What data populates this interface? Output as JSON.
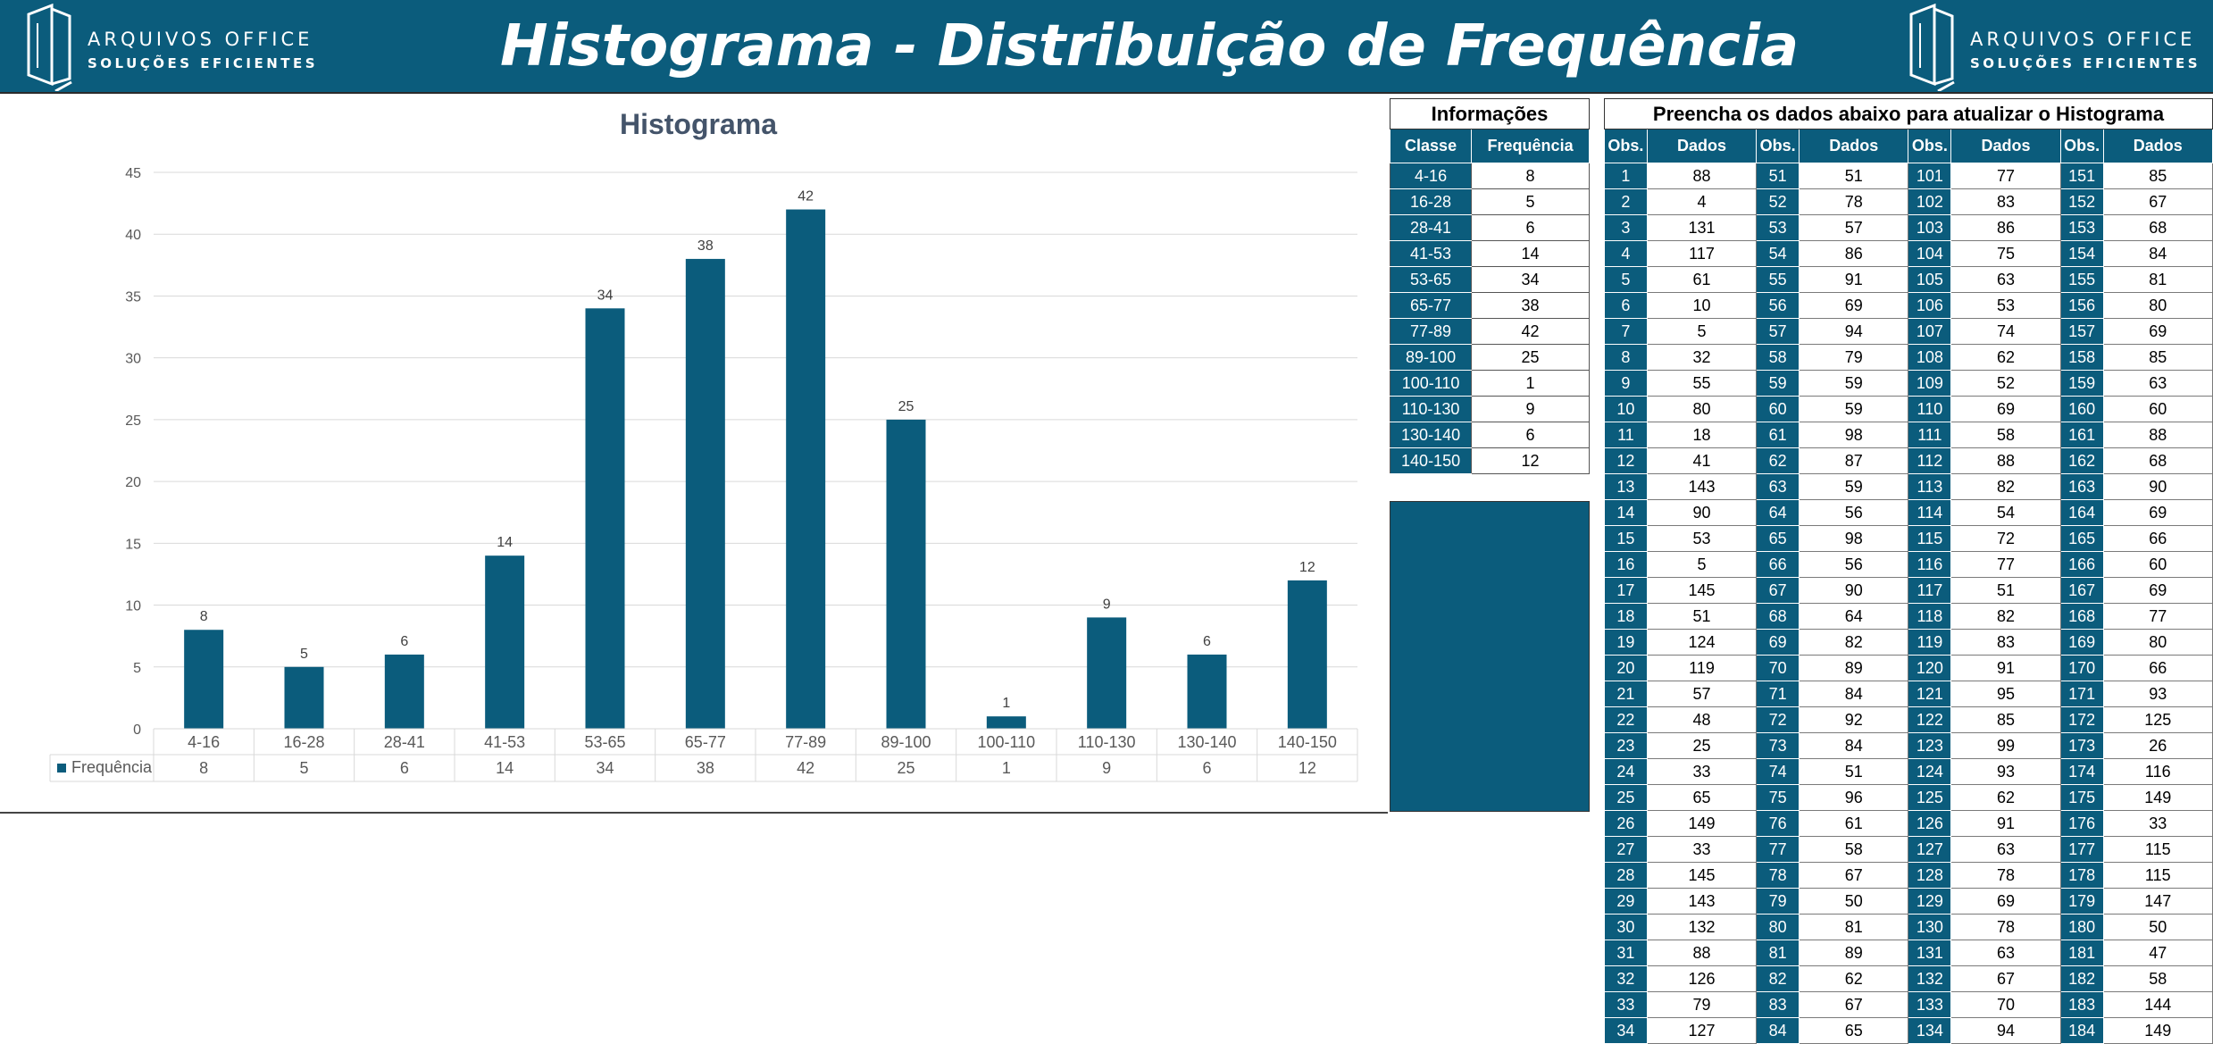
{
  "header": {
    "title": "Histograma - Distribuição de Frequência",
    "logo_line1": "ARQUIVOS OFFICE",
    "logo_line2": "SOLUÇÕES EFICIENTES",
    "brand_color": "#0b5c7c"
  },
  "chart_data": {
    "type": "bar",
    "title": "Histograma",
    "categories": [
      "4-16",
      "16-28",
      "28-41",
      "41-53",
      "53-65",
      "65-77",
      "77-89",
      "89-100",
      "100-110",
      "110-130",
      "130-140",
      "140-150"
    ],
    "series": [
      {
        "name": "Frequência",
        "values": [
          8,
          5,
          6,
          14,
          34,
          38,
          42,
          25,
          1,
          9,
          6,
          12
        ]
      }
    ],
    "ylim": [
      0,
      45
    ],
    "yticks": [
      0,
      5,
      10,
      15,
      20,
      25,
      30,
      35,
      40,
      45
    ],
    "grid": true,
    "data_table": true,
    "bar_color": "#0b5c7c"
  },
  "info": {
    "title": "Informações",
    "col_classe": "Classe",
    "col_frequencia": "Frequência",
    "rows": [
      {
        "classe": "4-16",
        "freq": "8"
      },
      {
        "classe": "16-28",
        "freq": "5"
      },
      {
        "classe": "28-41",
        "freq": "6"
      },
      {
        "classe": "41-53",
        "freq": "14"
      },
      {
        "classe": "53-65",
        "freq": "34"
      },
      {
        "classe": "65-77",
        "freq": "38"
      },
      {
        "classe": "77-89",
        "freq": "42"
      },
      {
        "classe": "89-100",
        "freq": "25"
      },
      {
        "classe": "100-110",
        "freq": "1"
      },
      {
        "classe": "110-130",
        "freq": "9"
      },
      {
        "classe": "130-140",
        "freq": "6"
      },
      {
        "classe": "140-150",
        "freq": "12"
      }
    ]
  },
  "observations": {
    "title": "Preencha os dados abaixo para atualizar o Histograma",
    "col_obs": "Obs.",
    "col_dados": "Dados",
    "rows": [
      [
        "1",
        "88",
        "51",
        "51",
        "101",
        "77",
        "151",
        "85"
      ],
      [
        "2",
        "4",
        "52",
        "78",
        "102",
        "83",
        "152",
        "67"
      ],
      [
        "3",
        "131",
        "53",
        "57",
        "103",
        "86",
        "153",
        "68"
      ],
      [
        "4",
        "117",
        "54",
        "86",
        "104",
        "75",
        "154",
        "84"
      ],
      [
        "5",
        "61",
        "55",
        "91",
        "105",
        "63",
        "155",
        "81"
      ],
      [
        "6",
        "10",
        "56",
        "69",
        "106",
        "53",
        "156",
        "80"
      ],
      [
        "7",
        "5",
        "57",
        "94",
        "107",
        "74",
        "157",
        "69"
      ],
      [
        "8",
        "32",
        "58",
        "79",
        "108",
        "62",
        "158",
        "85"
      ],
      [
        "9",
        "55",
        "59",
        "59",
        "109",
        "52",
        "159",
        "63"
      ],
      [
        "10",
        "80",
        "60",
        "59",
        "110",
        "69",
        "160",
        "60"
      ],
      [
        "11",
        "18",
        "61",
        "98",
        "111",
        "58",
        "161",
        "88"
      ],
      [
        "12",
        "41",
        "62",
        "87",
        "112",
        "88",
        "162",
        "68"
      ],
      [
        "13",
        "143",
        "63",
        "59",
        "113",
        "82",
        "163",
        "90"
      ],
      [
        "14",
        "90",
        "64",
        "56",
        "114",
        "54",
        "164",
        "69"
      ],
      [
        "15",
        "53",
        "65",
        "98",
        "115",
        "72",
        "165",
        "66"
      ],
      [
        "16",
        "5",
        "66",
        "56",
        "116",
        "77",
        "166",
        "60"
      ],
      [
        "17",
        "145",
        "67",
        "90",
        "117",
        "51",
        "167",
        "69"
      ],
      [
        "18",
        "51",
        "68",
        "64",
        "118",
        "82",
        "168",
        "77"
      ],
      [
        "19",
        "124",
        "69",
        "82",
        "119",
        "83",
        "169",
        "80"
      ],
      [
        "20",
        "119",
        "70",
        "89",
        "120",
        "91",
        "170",
        "66"
      ],
      [
        "21",
        "57",
        "71",
        "84",
        "121",
        "95",
        "171",
        "93"
      ],
      [
        "22",
        "48",
        "72",
        "92",
        "122",
        "85",
        "172",
        "125"
      ],
      [
        "23",
        "25",
        "73",
        "84",
        "123",
        "99",
        "173",
        "26"
      ],
      [
        "24",
        "33",
        "74",
        "51",
        "124",
        "93",
        "174",
        "116"
      ],
      [
        "25",
        "65",
        "75",
        "96",
        "125",
        "62",
        "175",
        "149"
      ],
      [
        "26",
        "149",
        "76",
        "61",
        "126",
        "91",
        "176",
        "33"
      ],
      [
        "27",
        "33",
        "77",
        "58",
        "127",
        "63",
        "177",
        "115"
      ],
      [
        "28",
        "145",
        "78",
        "67",
        "128",
        "78",
        "178",
        "115"
      ],
      [
        "29",
        "143",
        "79",
        "50",
        "129",
        "69",
        "179",
        "147"
      ],
      [
        "30",
        "132",
        "80",
        "81",
        "130",
        "78",
        "180",
        "50"
      ],
      [
        "31",
        "88",
        "81",
        "89",
        "131",
        "63",
        "181",
        "47"
      ],
      [
        "32",
        "126",
        "82",
        "62",
        "132",
        "67",
        "182",
        "58"
      ],
      [
        "33",
        "79",
        "83",
        "67",
        "133",
        "70",
        "183",
        "144"
      ],
      [
        "34",
        "127",
        "84",
        "65",
        "134",
        "94",
        "184",
        "149"
      ]
    ]
  }
}
